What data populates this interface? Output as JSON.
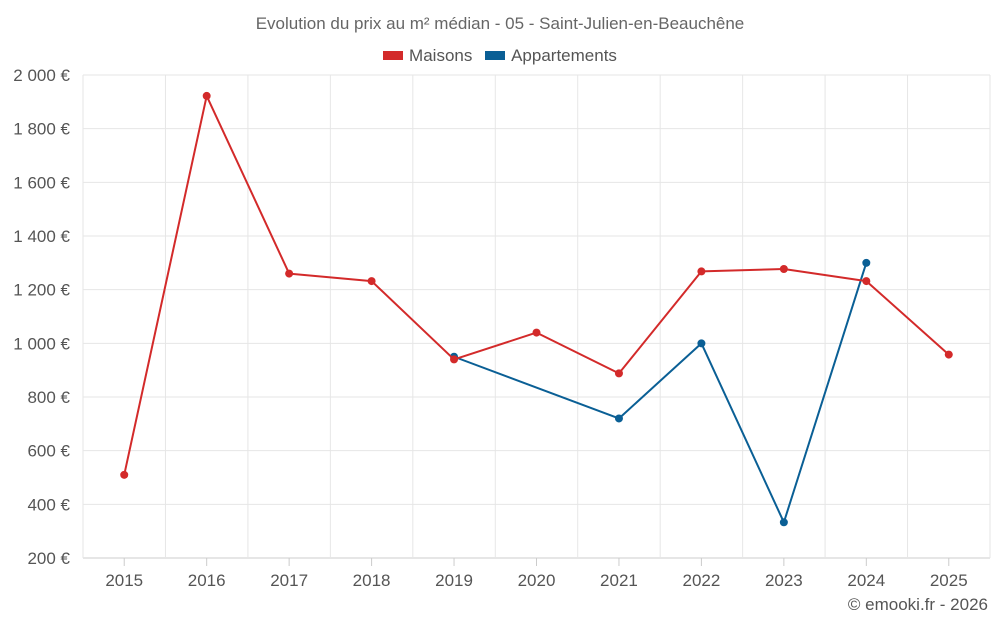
{
  "chart_data": {
    "type": "line",
    "title": "Evolution du prix au m² médian - 05 - Saint-Julien-en-Beauchêne",
    "categories": [
      "2015",
      "2016",
      "2017",
      "2018",
      "2019",
      "2020",
      "2021",
      "2022",
      "2023",
      "2024",
      "2025"
    ],
    "y_tick_labels": [
      "200 €",
      "400 €",
      "600 €",
      "800 €",
      "1 000 €",
      "1 200 €",
      "1 400 €",
      "1 600 €",
      "1 800 €",
      "2 000 €"
    ],
    "y_ticks": [
      200,
      400,
      600,
      800,
      1000,
      1200,
      1400,
      1600,
      1800,
      2000
    ],
    "ylim": [
      200,
      2000
    ],
    "xlabel": "",
    "ylabel": "",
    "grid": true,
    "legend_position": "top-center",
    "series": [
      {
        "name": "Maisons",
        "color": "#d32a2a",
        "values": [
          510,
          1922,
          1260,
          1232,
          940,
          1040,
          888,
          1268,
          1277,
          1232,
          958
        ]
      },
      {
        "name": "Appartements",
        "color": "#0a5f95",
        "values": [
          null,
          null,
          null,
          null,
          950,
          null,
          720,
          1000,
          333,
          1300,
          null
        ]
      }
    ]
  },
  "credit": "© emooki.fr - 2026"
}
